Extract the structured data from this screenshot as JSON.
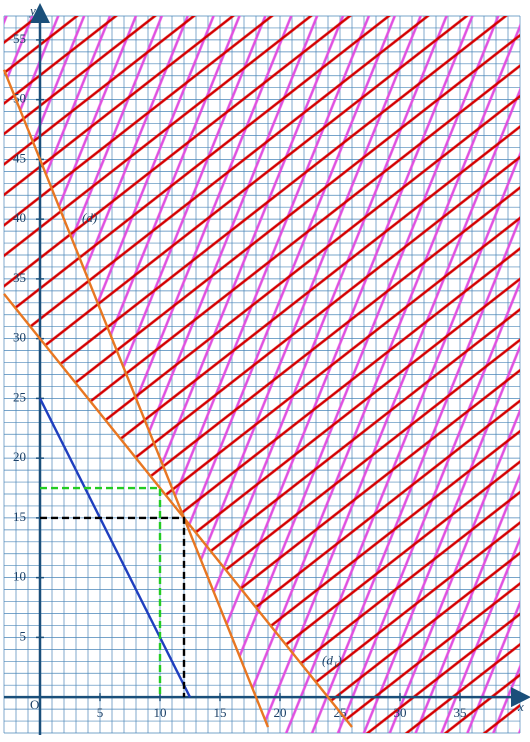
{
  "chart_data": {
    "type": "line",
    "x_label": "x",
    "y_label": "y",
    "origin_label": "O",
    "xlim": [
      -3,
      40
    ],
    "ylim": [
      -3,
      57
    ],
    "xticks": [
      5,
      10,
      15,
      20,
      25,
      30,
      35
    ],
    "yticks": [
      5,
      10,
      15,
      20,
      25,
      30,
      35,
      40,
      45,
      50,
      55
    ],
    "grid": true,
    "series": [
      {
        "label": "(d)",
        "label_at": [
          3.5,
          40
        ],
        "color": "#e87722",
        "x": [
          -3,
          19
        ],
        "values": [
          52.5,
          -2.5
        ],
        "hatch": "above",
        "hatch_color": "#e050e0",
        "hatch_angle": -68
      },
      {
        "label": "(d₁)",
        "label_at": [
          23.5,
          3
        ],
        "color": "#e87722",
        "x": [
          -3,
          26
        ],
        "values": [
          33.75,
          -2.5
        ],
        "hatch": "above",
        "hatch_color": "#d40000",
        "hatch_angle": -38
      },
      {
        "color": "#1f3fbf",
        "x": [
          0,
          12.5
        ],
        "values": [
          25,
          0
        ]
      },
      {
        "color": "#000000",
        "dashed": true,
        "x": [
          0,
          12,
          12
        ],
        "values": [
          15,
          15,
          0
        ]
      },
      {
        "color": "#22cc22",
        "dashed": true,
        "x": [
          0,
          10,
          10
        ],
        "values": [
          17.5,
          17.5,
          0
        ]
      }
    ]
  }
}
